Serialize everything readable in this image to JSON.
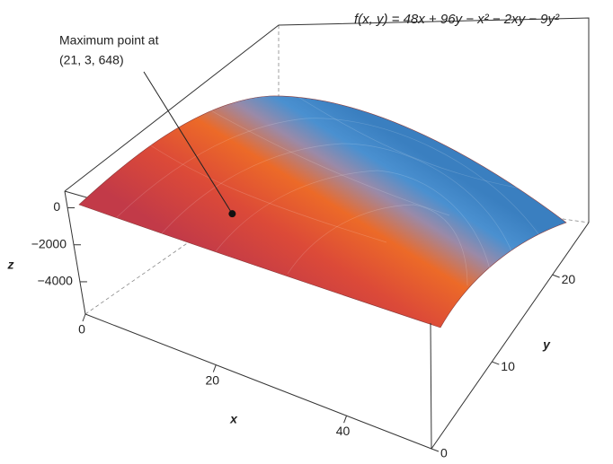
{
  "chart_data": {
    "type": "surface3d",
    "title": "f(x, y) = 48x + 96y − x² − 2xy − 9y²",
    "x_label": "x",
    "y_label": "y",
    "z_label": "z",
    "xlim": [
      0,
      53
    ],
    "ylim": [
      0,
      26
    ],
    "zlim": [
      -5750,
      900
    ],
    "xticks": [
      0,
      20,
      40
    ],
    "yticks": [
      0,
      10,
      20
    ],
    "zticks": [
      {
        "value": -4000,
        "label": "−4000"
      },
      {
        "value": -2000,
        "label": "−2000"
      },
      0
    ],
    "annotation": {
      "text": [
        "Maximum point at",
        "(21, 3, 648)"
      ],
      "x": 21,
      "y": 3,
      "z": 648
    }
  }
}
